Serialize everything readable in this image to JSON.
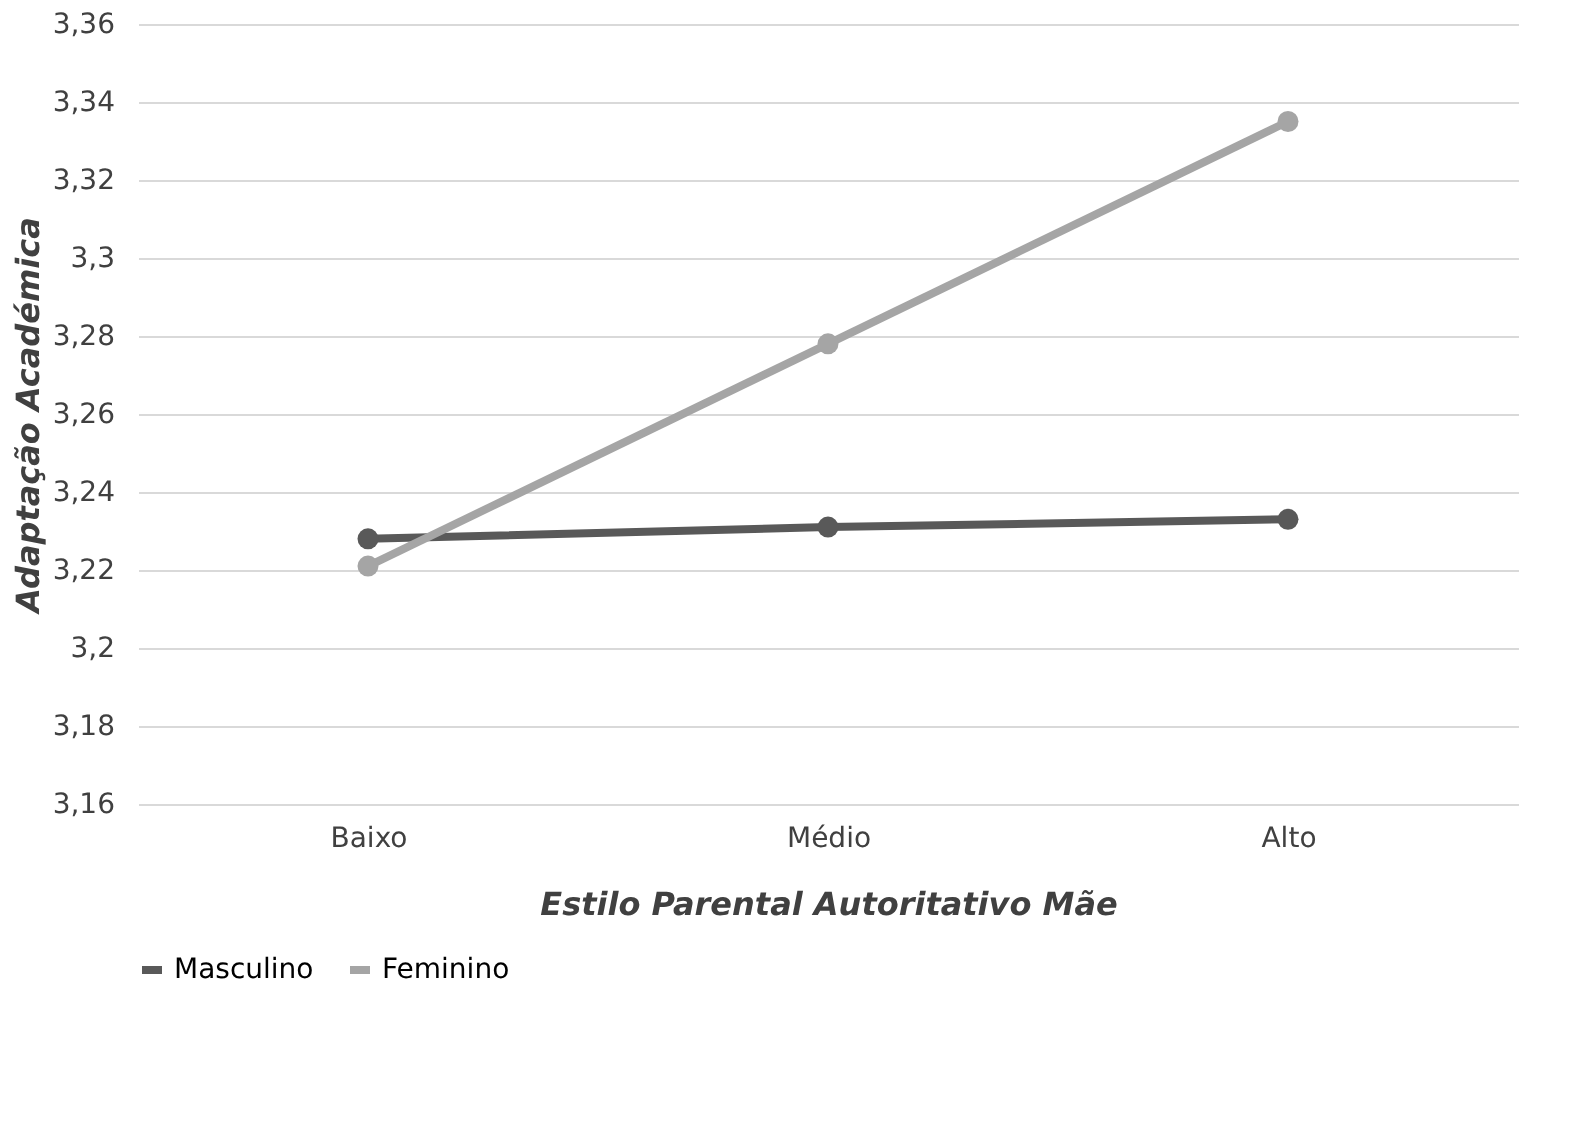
{
  "chart_data": {
    "type": "line",
    "xlabel": "Estilo Parental Autoritativo Mãe",
    "ylabel": "Adaptação Académica",
    "categories": [
      "Baixo",
      "Médio",
      "Alto"
    ],
    "series": [
      {
        "name": "Masculino",
        "color": "#595959",
        "values": [
          3.228,
          3.231,
          3.233
        ]
      },
      {
        "name": "Feminino",
        "color": "#a5a5a5",
        "values": [
          3.221,
          3.278,
          3.335
        ]
      }
    ],
    "ylim": [
      3.16,
      3.36
    ],
    "yticks": [
      {
        "value": 3.16,
        "label": "3,16"
      },
      {
        "value": 3.18,
        "label": "3,18"
      },
      {
        "value": 3.2,
        "label": "3,2"
      },
      {
        "value": 3.22,
        "label": "3,22"
      },
      {
        "value": 3.24,
        "label": "3,24"
      },
      {
        "value": 3.26,
        "label": "3,26"
      },
      {
        "value": 3.28,
        "label": "3,28"
      },
      {
        "value": 3.3,
        "label": "3,3"
      },
      {
        "value": 3.32,
        "label": "3,32"
      },
      {
        "value": 3.34,
        "label": "3,34"
      },
      {
        "value": 3.36,
        "label": "3,36"
      }
    ],
    "grid": "y",
    "legend": "bottom",
    "marker": "circle",
    "line_style": "solid"
  }
}
